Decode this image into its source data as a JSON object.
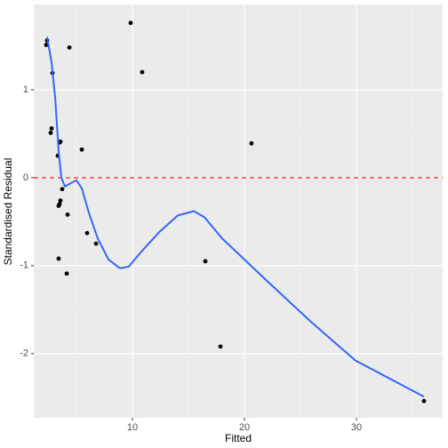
{
  "chart_data": {
    "type": "scatter",
    "x_label": "Fitted",
    "y_label": "Standardised Residual",
    "xlim": [
      1.19,
      37.7
    ],
    "ylim": [
      -2.73,
      1.97
    ],
    "xticks": [
      10,
      20,
      30
    ],
    "yticks": [
      -2,
      -1,
      0,
      1
    ],
    "grid": true,
    "minor_grid": true,
    "point_color": "#000000",
    "x": [
      2.38,
      2.3,
      4.37,
      9.84,
      10.87,
      2.86,
      2.78,
      2.7,
      3.57,
      3.49,
      5.48,
      20.63,
      3.33,
      3.73,
      3.57,
      3.49,
      3.41,
      4.21,
      5.95,
      6.75,
      3.41,
      16.51,
      4.13,
      17.86,
      36.03
    ],
    "y": [
      1.56,
      1.51,
      1.48,
      1.76,
      1.2,
      1.19,
      0.56,
      0.51,
      0.41,
      0.4,
      0.32,
      0.39,
      0.25,
      -0.13,
      -0.26,
      -0.3,
      -0.32,
      -0.42,
      -0.63,
      -0.75,
      -0.92,
      -0.95,
      -1.09,
      -1.92,
      -2.54
    ],
    "smooth": {
      "color": "#3366ff",
      "x": [
        2.38,
        2.78,
        3.1,
        3.41,
        3.65,
        3.97,
        4.52,
        5.0,
        5.48,
        6.11,
        6.9,
        7.86,
        8.89,
        9.68,
        10.87,
        12.46,
        14.05,
        15.48,
        16.43,
        18.0,
        21.98,
        25.95,
        29.92,
        36.03
      ],
      "y": [
        1.6,
        1.31,
        0.91,
        0.3,
        0.0,
        -0.1,
        -0.06,
        -0.03,
        -0.12,
        -0.4,
        -0.69,
        -0.93,
        -1.03,
        -1.01,
        -0.83,
        -0.61,
        -0.43,
        -0.38,
        -0.45,
        -0.69,
        -1.17,
        -1.64,
        -2.08,
        -2.49
      ]
    },
    "hline": {
      "value": 0,
      "color": "#ff3333",
      "linetype": "dashed"
    }
  }
}
